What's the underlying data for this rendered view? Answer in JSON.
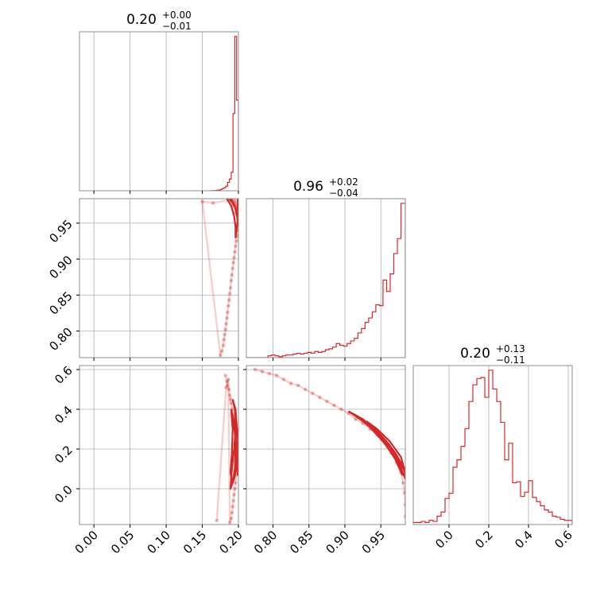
{
  "colors": {
    "series": "#d62728",
    "grid": "#b0b0b0",
    "frame": "#8c8c8c"
  },
  "chart_data": [
    {
      "type": "histogram",
      "panel": "p0-hist",
      "title": {
        "median": "0.20",
        "plus": "+0.00",
        "minus": "−0.01"
      },
      "xlim": [
        -0.02,
        0.2
      ],
      "bins": [
        0.1625,
        0.165,
        0.1675,
        0.17,
        0.1725,
        0.175,
        0.1775,
        0.18,
        0.1825,
        0.185,
        0.1875,
        0.19,
        0.1925,
        0.195,
        0.1975,
        0.2
      ],
      "counts": [
        0.5,
        1,
        1.5,
        3,
        4,
        8,
        13,
        18,
        28,
        50,
        70,
        110,
        460,
        920,
        540
      ],
      "grid": true
    },
    {
      "type": "histogram",
      "panel": "p1-hist",
      "title": {
        "median": "0.96",
        "plus": "+0.02",
        "minus": "−0.04"
      },
      "xlim": [
        0.763,
        0.984
      ],
      "bins": [
        0.763,
        0.768,
        0.773,
        0.778,
        0.783,
        0.788,
        0.793,
        0.798,
        0.803,
        0.808,
        0.813,
        0.818,
        0.823,
        0.828,
        0.833,
        0.838,
        0.843,
        0.848,
        0.853,
        0.858,
        0.863,
        0.868,
        0.873,
        0.878,
        0.883,
        0.888,
        0.893,
        0.898,
        0.903,
        0.908,
        0.913,
        0.918,
        0.923,
        0.928,
        0.933,
        0.938,
        0.943,
        0.948,
        0.953,
        0.958,
        0.963,
        0.968,
        0.973,
        0.978,
        0.984
      ],
      "counts": [
        0,
        0,
        0,
        0,
        0,
        0,
        2,
        3,
        2,
        1,
        2,
        3,
        3,
        4,
        5,
        4,
        5,
        6,
        5,
        7,
        6,
        7,
        9,
        10,
        12,
        16,
        14,
        13,
        16,
        19,
        22,
        28,
        33,
        40,
        45,
        52,
        60,
        59,
        88,
        75,
        95,
        118,
        135,
        175
      ],
      "grid": true
    },
    {
      "type": "histogram",
      "panel": "p2-hist",
      "title": {
        "median": "0.20",
        "plus": "+0.13",
        "minus": "−0.11"
      },
      "xlim": [
        -0.18,
        0.62
      ],
      "bins": [
        -0.18,
        -0.16,
        -0.14,
        -0.12,
        -0.1,
        -0.08,
        -0.06,
        -0.04,
        -0.02,
        0.0,
        0.02,
        0.04,
        0.06,
        0.08,
        0.1,
        0.12,
        0.14,
        0.16,
        0.18,
        0.2,
        0.22,
        0.24,
        0.26,
        0.28,
        0.3,
        0.32,
        0.34,
        0.36,
        0.38,
        0.4,
        0.42,
        0.44,
        0.46,
        0.48,
        0.5,
        0.52,
        0.54,
        0.56,
        0.58,
        0.6,
        0.62
      ],
      "counts": [
        2,
        2,
        3,
        2,
        4,
        3,
        8,
        12,
        25,
        30,
        55,
        62,
        75,
        92,
        118,
        134,
        140,
        141,
        122,
        148,
        130,
        118,
        98,
        62,
        78,
        40,
        41,
        27,
        31,
        42,
        26,
        22,
        18,
        14,
        12,
        8,
        7,
        5,
        4,
        4
      ],
      "grid": true
    },
    {
      "type": "scatter-contour",
      "panel": "p1-vs-p0",
      "xlim": [
        -0.02,
        0.2
      ],
      "ylim": [
        0.763,
        0.984
      ],
      "points": [
        [
          0.194,
          0.983
        ],
        [
          0.195,
          0.98
        ],
        [
          0.196,
          0.977
        ],
        [
          0.197,
          0.973
        ],
        [
          0.198,
          0.968
        ],
        [
          0.198,
          0.962
        ],
        [
          0.199,
          0.955
        ],
        [
          0.199,
          0.947
        ],
        [
          0.199,
          0.94
        ],
        [
          0.198,
          0.932
        ],
        [
          0.197,
          0.925
        ],
        [
          0.196,
          0.918
        ],
        [
          0.195,
          0.91
        ],
        [
          0.194,
          0.902
        ],
        [
          0.193,
          0.895
        ],
        [
          0.192,
          0.887
        ],
        [
          0.191,
          0.878
        ],
        [
          0.19,
          0.87
        ],
        [
          0.189,
          0.86
        ],
        [
          0.188,
          0.852
        ],
        [
          0.187,
          0.843
        ],
        [
          0.186,
          0.835
        ],
        [
          0.185,
          0.826
        ],
        [
          0.184,
          0.818
        ],
        [
          0.183,
          0.81
        ],
        [
          0.182,
          0.802
        ],
        [
          0.181,
          0.795
        ],
        [
          0.18,
          0.788
        ],
        [
          0.179,
          0.78
        ],
        [
          0.177,
          0.772
        ],
        [
          0.175,
          0.766
        ],
        [
          0.15,
          0.98
        ],
        [
          0.165,
          0.978
        ],
        [
          0.186,
          0.982
        ],
        [
          0.193,
          0.975
        ],
        [
          0.196,
          0.965
        ]
      ],
      "contours": [
        [
          [
            0.187,
            0.984
          ],
          [
            0.192,
            0.978
          ],
          [
            0.196,
            0.97
          ],
          [
            0.198,
            0.96
          ],
          [
            0.2,
            0.95
          ],
          [
            0.199,
            0.962
          ],
          [
            0.2,
            0.975
          ],
          [
            0.199,
            0.984
          ]
        ],
        [
          [
            0.184,
            0.984
          ],
          [
            0.19,
            0.974
          ],
          [
            0.194,
            0.96
          ],
          [
            0.196,
            0.945
          ],
          [
            0.196,
            0.93
          ],
          [
            0.198,
            0.945
          ],
          [
            0.2,
            0.965
          ],
          [
            0.2,
            0.984
          ]
        ],
        [
          [
            0.19,
            0.984
          ],
          [
            0.194,
            0.976
          ],
          [
            0.197,
            0.968
          ],
          [
            0.199,
            0.972
          ],
          [
            0.199,
            0.984
          ]
        ]
      ],
      "yticks": [
        0.8,
        0.85,
        0.9,
        0.95
      ],
      "grid": true
    },
    {
      "type": "scatter-contour",
      "panel": "p2-vs-p0",
      "xlim": [
        -0.02,
        0.2
      ],
      "ylim": [
        -0.18,
        0.62
      ],
      "points": [
        [
          0.182,
          0.57
        ],
        [
          0.184,
          0.54
        ],
        [
          0.185,
          0.52
        ],
        [
          0.187,
          0.5
        ],
        [
          0.188,
          0.47
        ],
        [
          0.189,
          0.45
        ],
        [
          0.19,
          0.43
        ],
        [
          0.191,
          0.4
        ],
        [
          0.192,
          0.37
        ],
        [
          0.193,
          0.35
        ],
        [
          0.194,
          0.32
        ],
        [
          0.196,
          0.29
        ],
        [
          0.197,
          0.26
        ],
        [
          0.198,
          0.23
        ],
        [
          0.199,
          0.2
        ],
        [
          0.2,
          0.17
        ],
        [
          0.199,
          0.14
        ],
        [
          0.198,
          0.1
        ],
        [
          0.197,
          0.07
        ],
        [
          0.196,
          0.03
        ],
        [
          0.195,
          0.0
        ],
        [
          0.194,
          -0.03
        ],
        [
          0.193,
          -0.06
        ],
        [
          0.192,
          -0.09
        ],
        [
          0.191,
          -0.12
        ],
        [
          0.19,
          -0.15
        ],
        [
          0.188,
          -0.17
        ],
        [
          0.186,
          0.55
        ],
        [
          0.183,
          0.51
        ],
        [
          0.17,
          -0.16
        ]
      ],
      "contours": [
        [
          [
            0.192,
            0.45
          ],
          [
            0.196,
            0.4
          ],
          [
            0.198,
            0.3
          ],
          [
            0.199,
            0.2
          ],
          [
            0.197,
            0.1
          ],
          [
            0.194,
            0.05
          ],
          [
            0.189,
            0.0
          ],
          [
            0.191,
            0.1
          ],
          [
            0.194,
            0.2
          ],
          [
            0.196,
            0.3
          ],
          [
            0.195,
            0.4
          ],
          [
            0.192,
            0.45
          ]
        ],
        [
          [
            0.19,
            0.4
          ],
          [
            0.193,
            0.35
          ],
          [
            0.195,
            0.28
          ],
          [
            0.196,
            0.2
          ],
          [
            0.195,
            0.1
          ],
          [
            0.192,
            0.03
          ],
          [
            0.189,
            0.08
          ],
          [
            0.191,
            0.18
          ],
          [
            0.192,
            0.3
          ],
          [
            0.19,
            0.4
          ]
        ],
        [
          [
            0.197,
            0.34
          ],
          [
            0.199,
            0.26
          ],
          [
            0.2,
            0.16
          ],
          [
            0.199,
            0.07
          ],
          [
            0.198,
            0.16
          ],
          [
            0.198,
            0.26
          ],
          [
            0.197,
            0.34
          ]
        ]
      ],
      "yticks": [
        0.0,
        0.2,
        0.4,
        0.6
      ],
      "xticks": [
        0.0,
        0.05,
        0.1,
        0.15,
        0.2
      ],
      "grid": true
    },
    {
      "type": "scatter-contour",
      "panel": "p2-vs-p1",
      "xlim": [
        0.763,
        0.984
      ],
      "ylim": [
        -0.18,
        0.62
      ],
      "points": [
        [
          0.775,
          0.6
        ],
        [
          0.785,
          0.59
        ],
        [
          0.795,
          0.58
        ],
        [
          0.805,
          0.57
        ],
        [
          0.815,
          0.55
        ],
        [
          0.825,
          0.53
        ],
        [
          0.835,
          0.52
        ],
        [
          0.845,
          0.5
        ],
        [
          0.855,
          0.48
        ],
        [
          0.865,
          0.46
        ],
        [
          0.875,
          0.44
        ],
        [
          0.885,
          0.42
        ],
        [
          0.895,
          0.4
        ],
        [
          0.905,
          0.38
        ],
        [
          0.915,
          0.35
        ],
        [
          0.925,
          0.33
        ],
        [
          0.935,
          0.3
        ],
        [
          0.945,
          0.27
        ],
        [
          0.955,
          0.23
        ],
        [
          0.965,
          0.18
        ],
        [
          0.972,
          0.13
        ],
        [
          0.978,
          0.08
        ],
        [
          0.981,
          0.03
        ],
        [
          0.983,
          -0.02
        ],
        [
          0.984,
          -0.08
        ],
        [
          0.984,
          -0.14
        ]
      ],
      "contours": [
        [
          [
            0.905,
            0.39
          ],
          [
            0.925,
            0.34
          ],
          [
            0.945,
            0.28
          ],
          [
            0.962,
            0.21
          ],
          [
            0.975,
            0.13
          ],
          [
            0.984,
            0.05
          ],
          [
            0.983,
            0.1
          ],
          [
            0.97,
            0.18
          ],
          [
            0.955,
            0.25
          ],
          [
            0.935,
            0.32
          ],
          [
            0.915,
            0.37
          ],
          [
            0.905,
            0.39
          ]
        ],
        [
          [
            0.915,
            0.37
          ],
          [
            0.935,
            0.31
          ],
          [
            0.955,
            0.23
          ],
          [
            0.97,
            0.15
          ],
          [
            0.98,
            0.07
          ],
          [
            0.976,
            0.14
          ],
          [
            0.962,
            0.22
          ],
          [
            0.945,
            0.29
          ],
          [
            0.925,
            0.35
          ],
          [
            0.915,
            0.37
          ]
        ],
        [
          [
            0.93,
            0.34
          ],
          [
            0.95,
            0.27
          ],
          [
            0.968,
            0.19
          ],
          [
            0.98,
            0.11
          ],
          [
            0.984,
            0.08
          ],
          [
            0.978,
            0.16
          ],
          [
            0.962,
            0.24
          ],
          [
            0.945,
            0.3
          ],
          [
            0.93,
            0.34
          ]
        ]
      ],
      "xticks": [
        0.8,
        0.85,
        0.9,
        0.95
      ],
      "grid": true
    }
  ],
  "tick_labels": {
    "p0_x": [
      "0.00",
      "0.05",
      "0.10",
      "0.15",
      "0.20"
    ],
    "p1_x": [
      "0.80",
      "0.85",
      "0.90",
      "0.95"
    ],
    "p2_x": [
      "0.0",
      "0.2",
      "0.4",
      "0.6"
    ],
    "p1_y": [
      "0.80",
      "0.85",
      "0.90",
      "0.95"
    ],
    "p2_y": [
      "0.0",
      "0.2",
      "0.4",
      "0.6"
    ]
  }
}
